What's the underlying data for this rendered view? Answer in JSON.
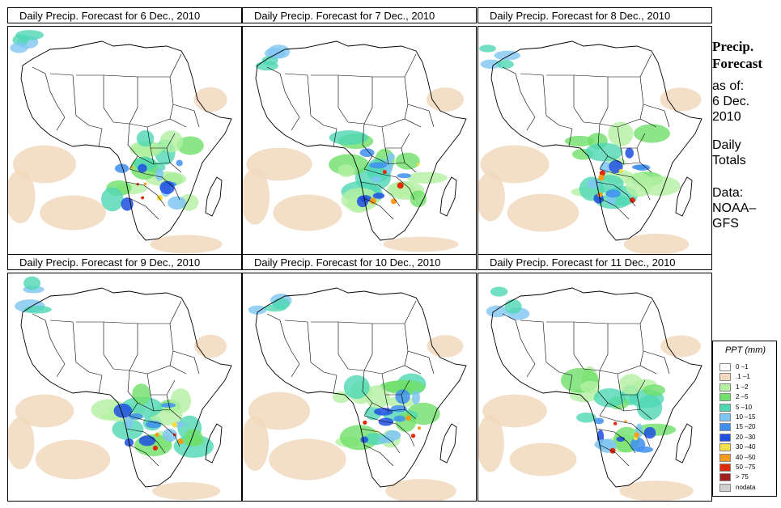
{
  "panels": [
    {
      "title": "Daily Precip. Forecast for  6 Dec., 2010"
    },
    {
      "title": "Daily Precip. Forecast for  7 Dec., 2010"
    },
    {
      "title": "Daily Precip. Forecast for  8 Dec., 2010"
    },
    {
      "title": "Daily Precip. Forecast for  9 Dec., 2010"
    },
    {
      "title": "Daily Precip. Forecast for  10 Dec., 2010"
    },
    {
      "title": "Daily Precip. Forecast for  11 Dec., 2010"
    }
  ],
  "side": {
    "heading_line1": "Precip.",
    "heading_line2": "Forecast",
    "asof": "as of:",
    "date_line1": "6 Dec.",
    "date_line2": "2010",
    "daily1": "Daily",
    "daily2": "Totals",
    "data1": "Data:",
    "data2": "NOAA–",
    "data3": "GFS"
  },
  "legend": {
    "title": "PPT (mm)",
    "items": [
      {
        "label": "0 –1",
        "color": "#ffffff"
      },
      {
        "label": ".1 –1",
        "color": "#f1d9bd"
      },
      {
        "label": "1 –2",
        "color": "#b3f0a3"
      },
      {
        "label": "2 –5",
        "color": "#6fe06a"
      },
      {
        "label": "5 –10",
        "color": "#4fd7b4"
      },
      {
        "label": "10 –15",
        "color": "#7fc6f2"
      },
      {
        "label": "15 –20",
        "color": "#3f8ff0"
      },
      {
        "label": "20 –30",
        "color": "#1f4fe0"
      },
      {
        "label": "30 –40",
        "color": "#f4e04a"
      },
      {
        "label": "40 –50",
        "color": "#f59a1a"
      },
      {
        "label": "50 –75",
        "color": "#e02a0a"
      },
      {
        "label": "> 75",
        "color": "#a02020"
      },
      {
        "label": "nodata",
        "color": "#d0d0d0"
      }
    ]
  }
}
